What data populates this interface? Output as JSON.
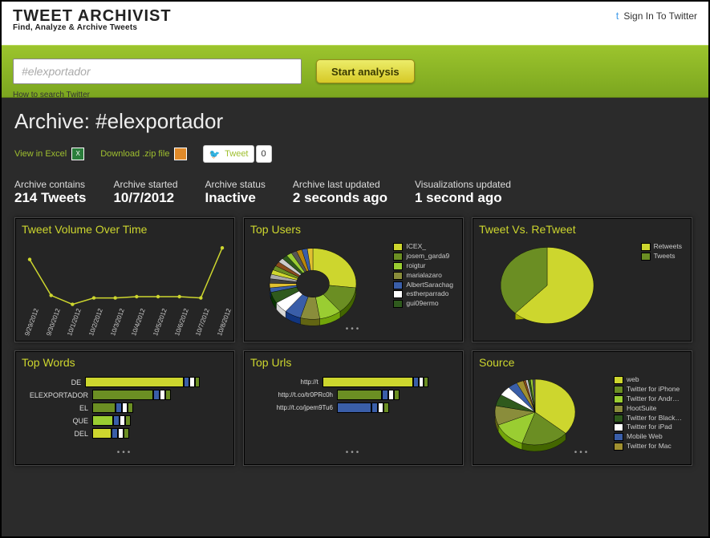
{
  "header": {
    "logo_line1": "TWEET ARCHIVIST",
    "logo_line2": "Find, Analyze & Archive Tweets",
    "signin": "Sign In To Twitter"
  },
  "search": {
    "placeholder": "#elexportador",
    "button": "Start analysis",
    "howto": "How to search Twitter"
  },
  "archive": {
    "title": "Archive: #elexportador",
    "view_excel": "View in Excel",
    "download_zip": "Download .zip file",
    "tweet_label": "Tweet",
    "tweet_count": "0"
  },
  "stats": {
    "contains": {
      "lbl": "Archive contains",
      "val": "214 Tweets"
    },
    "started": {
      "lbl": "Archive started",
      "val": "10/7/2012"
    },
    "status": {
      "lbl": "Archive status",
      "val": "Inactive"
    },
    "updated": {
      "lbl": "Archive last updated",
      "val": "2 seconds ago"
    },
    "viz": {
      "lbl": "Visualizations updated",
      "val": "1 second ago"
    }
  },
  "charts": {
    "volume": {
      "title": "Tweet Volume Over Time",
      "type": "line",
      "x": [
        "9/29/2012",
        "9/30/2012",
        "10/1/2012",
        "10/2/2012",
        "10/3/2012",
        "10/4/2012",
        "10/5/2012",
        "10/6/2012",
        "10/7/2012",
        "10/8/2012"
      ],
      "y": [
        78,
        22,
        8,
        18,
        18,
        20,
        20,
        20,
        18,
        96
      ],
      "line_color": "#cdd62e",
      "marker_color": "#cdd62e",
      "background": "#252525",
      "ylim": [
        0,
        100
      ]
    },
    "topusers": {
      "title": "Top Users",
      "type": "pie",
      "labels": [
        "ICEX_",
        "josem_garda9",
        "roigtur",
        "marialazaro",
        "AlbertSarachag",
        "estherparrado",
        "gui09ermo"
      ],
      "values": [
        26,
        12,
        8,
        7,
        6,
        5,
        5
      ],
      "colors": [
        "#cdd62e",
        "#6b8e23",
        "#9acd32",
        "#8a8d3b",
        "#3a5ea8",
        "#ffffff",
        "#2f5a1d"
      ],
      "inner_radius": 0.38,
      "legend_text_color": "#cccccc"
    },
    "tvr": {
      "title": "Tweet Vs. ReTweet",
      "type": "pie",
      "labels": [
        "Retweets",
        "Tweets"
      ],
      "values": [
        62,
        38
      ],
      "colors": [
        "#cdd62e",
        "#6b8e23"
      ]
    },
    "topwords": {
      "title": "Top Words",
      "type": "bar-horizontal",
      "labels": [
        "DE",
        "ELEXPORTADOR",
        "EL",
        "QUE",
        "DEL"
      ],
      "values": [
        100,
        55,
        20,
        18,
        16
      ],
      "colors": [
        "#cdd62e",
        "#6b8e23",
        "#6b8e23",
        "#9acd32",
        "#cdd62e"
      ]
    },
    "topurls": {
      "title": "Top Urls",
      "type": "bar-horizontal",
      "labels": [
        "http://t",
        "http://t.co/tr0PRc0h",
        "http://t.co/jpem9Tu6"
      ],
      "values": [
        100,
        40,
        30
      ],
      "colors": [
        "#cdd62e",
        "#6b8e23",
        "#3a5ea8"
      ]
    },
    "source": {
      "title": "Source",
      "type": "pie",
      "labels": [
        "web",
        "Twitter for iPhone",
        "Twitter for Andr…",
        "HootSuite",
        "Twitter for Black…",
        "Twitter for iPad",
        "Mobile Web",
        "Twitter for Mac"
      ],
      "values": [
        38,
        20,
        14,
        10,
        6,
        5,
        4,
        3
      ],
      "colors": [
        "#cdd62e",
        "#6b8e23",
        "#9acd32",
        "#8a8d3b",
        "#2f5a1d",
        "#ffffff",
        "#3a5ea8",
        "#a09030"
      ]
    }
  }
}
